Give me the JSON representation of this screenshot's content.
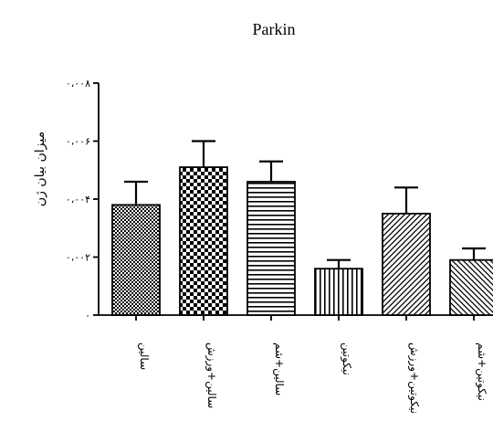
{
  "chart_data": {
    "type": "bar",
    "title": "Parkin",
    "ylabel": "میزان بیان ژن",
    "xlabel": "",
    "ylim": [
      0,
      0.008
    ],
    "yticks": [
      0,
      0.002,
      0.004,
      0.006,
      0.008
    ],
    "ytick_labels": [
      "۰",
      "۰،۰۰۲",
      "۰،۰۰۴",
      "۰،۰۰۶",
      "۰،۰۰۸"
    ],
    "categories": [
      "سالین",
      "سالین+ورزش",
      "سالین+شم",
      "نیکوتین",
      "نیکوتین+ورزش",
      "نیکوتین+شم"
    ],
    "values": [
      0.0038,
      0.0051,
      0.0046,
      0.0016,
      0.0035,
      0.0019
    ],
    "errors": [
      0.0008,
      0.0009,
      0.0007,
      0.0003,
      0.0009,
      0.0004
    ],
    "patterns": [
      "small-checker",
      "large-checker",
      "horizontal-lines",
      "vertical-lines",
      "diagonal-forward",
      "diagonal-back"
    ],
    "grid": false,
    "legend": "none"
  }
}
